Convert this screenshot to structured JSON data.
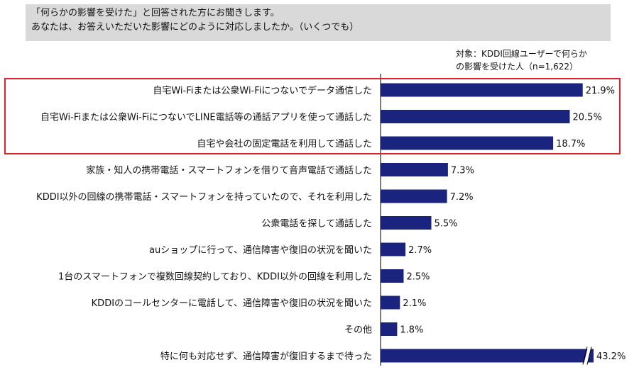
{
  "question": {
    "line1": "「何らかの影響を受けた」と回答された方にお聞きします。",
    "line2": "あなたは、お答えいただいた影響にどのように対応しましたか。（いくつでも）"
  },
  "target": {
    "line1": "対象：KDDI回線ユーザーで何らか",
    "line2": "の影響を受けた人（n=1,622）"
  },
  "colors": {
    "bar": "#1a237e",
    "highlight": "#d9232d",
    "axis": "#222222"
  },
  "chart_data": {
    "type": "bar",
    "orientation": "horizontal",
    "title": "",
    "xlabel": "",
    "ylabel": "",
    "unit": "%",
    "categories": [
      "自宅Wi-Fiまたは公衆Wi-Fiにつないでデータ通信した",
      "自宅Wi-Fiまたは公衆Wi-FiにつないでLINE電話等の通話アプリを使って通話した",
      "自宅や会社の固定電話を利用して通話した",
      "家族・知人の携帯電話・スマートフォンを借りて音声電話で通話した",
      "KDDI以外の回線の携帯電話・スマートフォンを持っていたので、それを利用した",
      "公衆電話を探して通話した",
      "auショップに行って、通信障害や復旧の状況を聞いた",
      "1台のスマートフォンで複数回線契約しており、KDDI以外の回線を利用した",
      "KDDIのコールセンターに電話して、通信障害や復旧の状況を聞いた",
      "その他",
      "特に何も対応せず、通信障害が復旧するまで待った"
    ],
    "values": [
      21.9,
      20.5,
      18.7,
      7.3,
      7.2,
      5.5,
      2.7,
      2.5,
      2.1,
      1.8,
      43.2
    ],
    "value_labels": [
      "21.9%",
      "20.5%",
      "18.7%",
      "7.3%",
      "7.2%",
      "5.5%",
      "2.7%",
      "2.5%",
      "2.1%",
      "1.8%",
      "43.2%"
    ],
    "highlighted_indices": [
      0,
      1,
      2
    ],
    "broken_bar_indices": [
      10
    ],
    "grid": false,
    "legend": "none"
  }
}
